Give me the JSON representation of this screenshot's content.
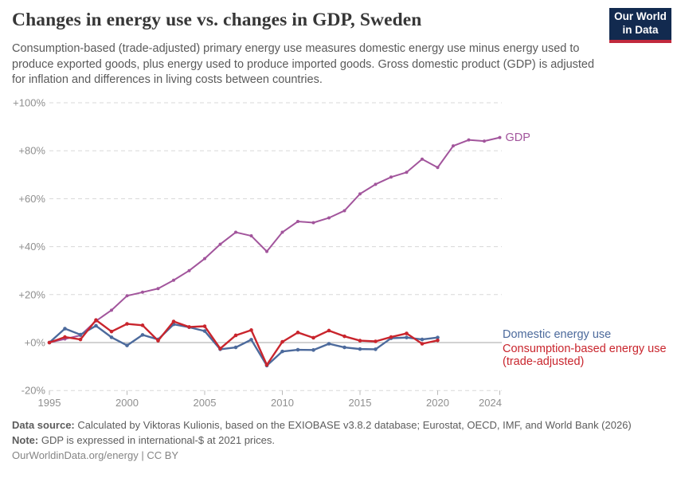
{
  "header": {
    "title": "Changes in energy use vs. changes in GDP, Sweden",
    "subtitle": "Consumption-based (trade-adjusted) primary energy use measures domestic energy use minus energy used to produce exported goods, plus energy used to produce imported goods. Gross domestic product (GDP) is adjusted for inflation and differences in living costs between countries.",
    "logo": {
      "line1": "Our World",
      "line2": "in Data",
      "bg_color": "#122a4f",
      "stripe_color": "#c12a3d"
    }
  },
  "chart_data": {
    "type": "line",
    "title": "Changes in energy use vs. changes in GDP, Sweden",
    "grid": "horizontal-dashed",
    "legend_position": "right-of-line-ends",
    "xlim": [
      1995,
      2024.2
    ],
    "ylim": [
      -20,
      100
    ],
    "x_ticks": [
      1995,
      2000,
      2005,
      2010,
      2015,
      2020,
      2024
    ],
    "y_ticks": [
      "+100%",
      "+80%",
      "+60%",
      "+40%",
      "+20%",
      "+0%",
      "-20%"
    ],
    "y_tick_values": [
      100,
      80,
      60,
      40,
      20,
      0,
      -20
    ],
    "unit": "percent change since 1995",
    "series": [
      {
        "name": "GDP",
        "color": "#a2559c",
        "start_year": 1995,
        "end_year": 2024,
        "values": [
          0,
          1.5,
          3,
          9,
          13.5,
          19.5,
          21,
          22.5,
          26,
          30,
          35,
          41,
          46,
          44.5,
          38,
          46,
          50.5,
          50,
          52,
          55,
          62,
          66,
          69,
          71,
          76.5,
          73,
          82,
          84.5,
          84,
          85.5
        ]
      },
      {
        "name": "Domestic energy use",
        "color": "#4c6a9c",
        "start_year": 1995,
        "end_year": 2020,
        "values": [
          0,
          5.8,
          3.3,
          7,
          2.2,
          -1.2,
          3.2,
          1.3,
          7.6,
          6.4,
          4.8,
          -2.8,
          -2,
          1.2,
          -9.6,
          -3.7,
          -3,
          -3.1,
          -0.5,
          -2,
          -2.7,
          -2.8,
          1.8,
          2.1,
          1.3,
          2.1
        ]
      },
      {
        "name": "Consumption-based energy use (trade-adjusted)",
        "color": "#c9252d",
        "start_year": 1995,
        "end_year": 2020,
        "values": [
          0,
          2.3,
          1.3,
          9.4,
          4.6,
          7.8,
          7.2,
          0.8,
          8.8,
          6.5,
          6.8,
          -2.5,
          3,
          5.2,
          -9.3,
          0.3,
          4.2,
          2,
          5,
          2.6,
          0.8,
          0.5,
          2.3,
          3.8,
          -0.5,
          0.9
        ]
      }
    ]
  },
  "labels": {
    "gdp": "GDP",
    "domestic": "Domestic energy use",
    "consumption_line1": "Consumption-based energy use",
    "consumption_line2": "(trade-adjusted)"
  },
  "footer": {
    "datasource_label": "Data source:",
    "datasource_text": "Calculated by Viktoras Kulionis, based on the EXIOBASE v3.8.2 database; Eurostat, OECD, IMF, and World Bank (2026)",
    "note_label": "Note:",
    "note_text": "GDP is expressed in international-$ at 2021 prices.",
    "link": "OurWorldinData.org/energy | CC BY"
  }
}
